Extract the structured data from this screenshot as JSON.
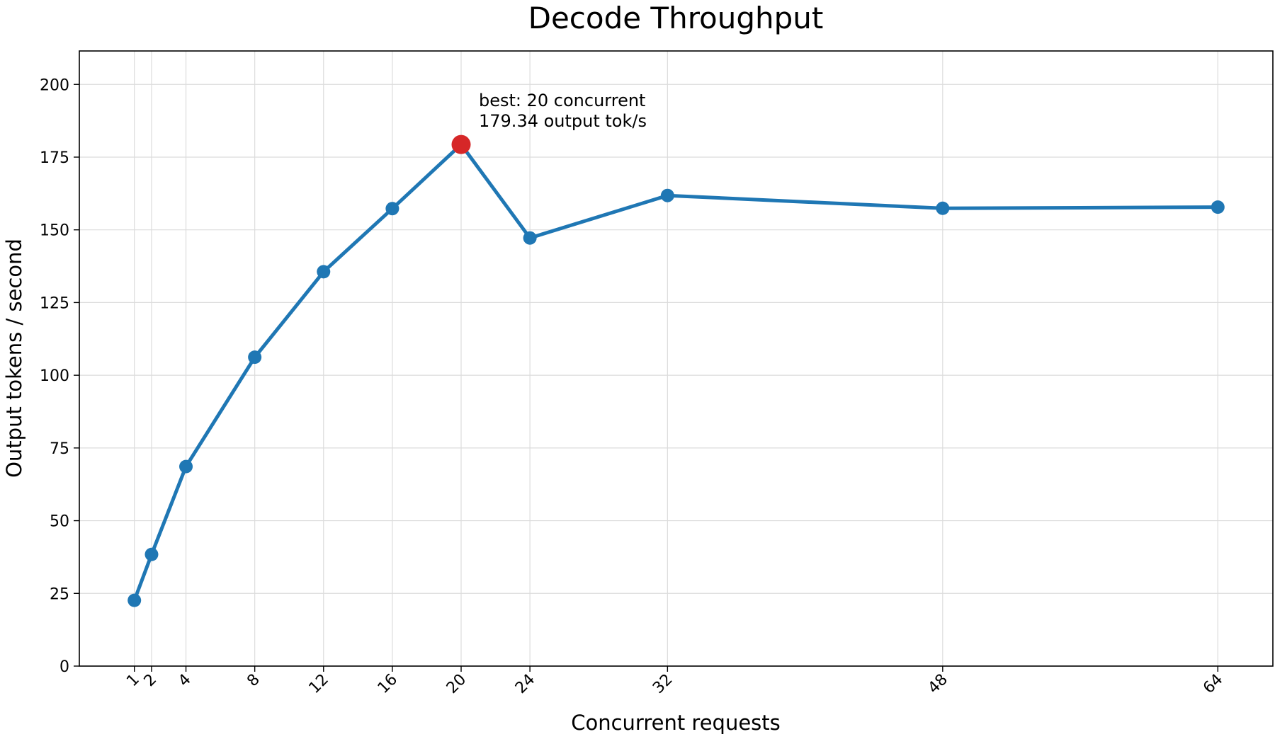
{
  "chart_data": {
    "type": "line",
    "title": "Decode Throughput",
    "xlabel": "Concurrent requests",
    "ylabel": "Output tokens / second",
    "x": [
      1,
      2,
      4,
      8,
      12,
      16,
      20,
      24,
      32,
      48,
      64
    ],
    "x_tick_labels": [
      "1",
      "2",
      "4",
      "8",
      "12",
      "16",
      "20",
      "24",
      "32",
      "48",
      "64"
    ],
    "y_ticks": [
      0,
      25,
      50,
      75,
      100,
      125,
      150,
      175,
      200
    ],
    "y_tick_labels": [
      "0",
      "25",
      "50",
      "75",
      "100",
      "125",
      "150",
      "175",
      "200"
    ],
    "xlim": [
      -2.2,
      67.2
    ],
    "ylim": [
      0,
      211.5
    ],
    "grid": true,
    "series": [
      {
        "values": [
          22.6,
          38.4,
          68.6,
          106.2,
          135.6,
          157.3,
          179.34,
          147.2,
          161.8,
          157.4,
          157.8
        ],
        "color": "#1f77b4"
      }
    ],
    "highlight": {
      "x": 20,
      "y": 179.34,
      "color": "#d62728",
      "annotation_lines": [
        "best: 20 concurrent",
        "179.34 output tok/s"
      ]
    }
  }
}
